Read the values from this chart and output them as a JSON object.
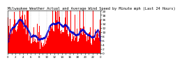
{
  "title": "Milwaukee Weather Actual and Average Wind Speed by Minute mph (Last 24 Hours)",
  "n_points": 1440,
  "y_max": 20,
  "y_min": 0,
  "y_ticks": [
    0,
    2,
    4,
    6,
    8,
    10,
    12,
    14,
    16,
    18,
    20
  ],
  "actual_color": "#ff0000",
  "average_color": "#0000cc",
  "background_color": "#ffffff",
  "grid_color": "#bbbbbb",
  "title_fontsize": 3.8,
  "tick_fontsize": 3.2,
  "seed": 7
}
